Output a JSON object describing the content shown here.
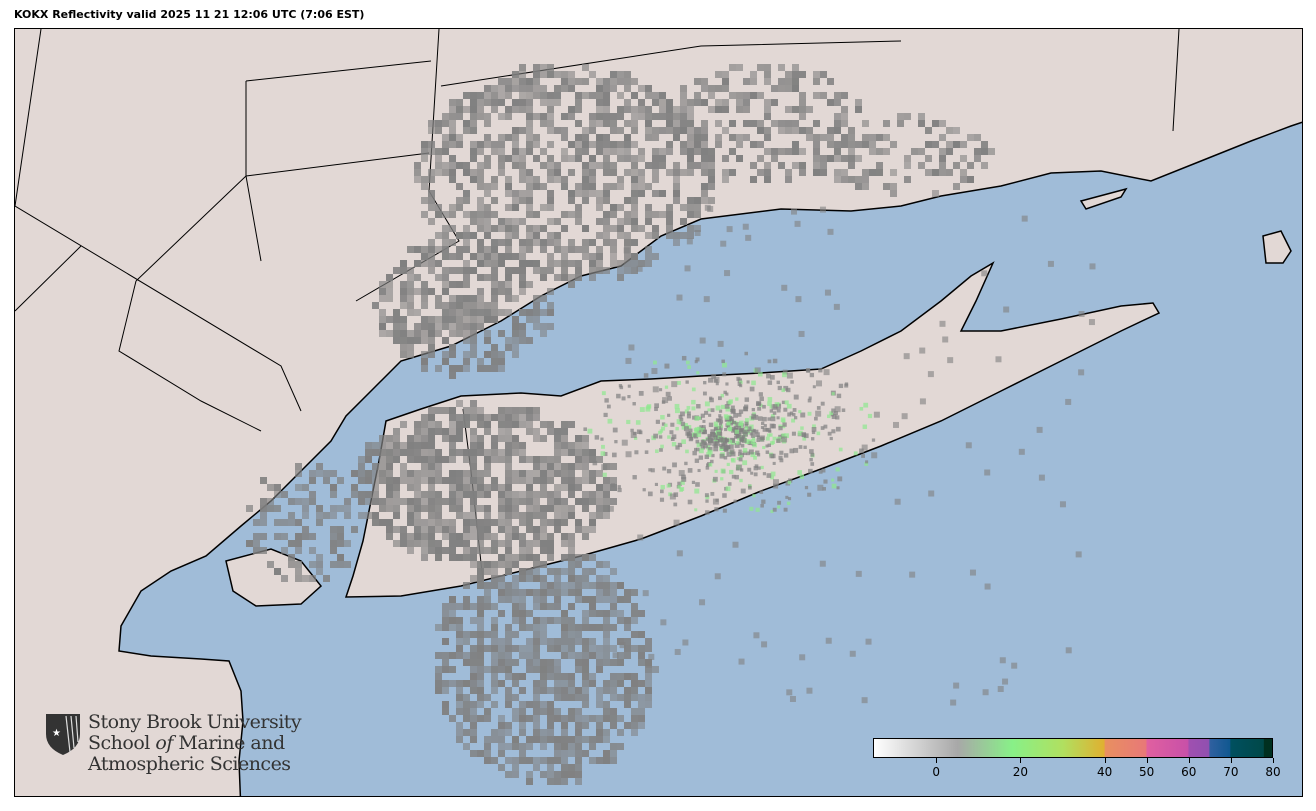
{
  "title": "KOKX Reflectivity valid 2025 11 21 12:06 UTC (7:06 EST)",
  "map": {
    "radar_site": "KOKX",
    "colors": {
      "land": "#e2d8d5",
      "water": "#a0bcd8",
      "echo": "#808080",
      "light_echo": "#8ee88e"
    }
  },
  "logo": {
    "line1": "Stony Brook University",
    "line2_a": "School ",
    "line2_b": "of",
    "line2_c": " Marine and",
    "line3": "Atmospheric Sciences"
  },
  "colorbar": {
    "min": -15,
    "max": 80,
    "ticks": [
      "0",
      "20",
      "40",
      "50",
      "60",
      "70",
      "80"
    ],
    "tick_values": [
      0,
      20,
      40,
      50,
      60,
      70,
      80
    ],
    "stops": [
      {
        "v": -15,
        "c": "#ffffff"
      },
      {
        "v": 5,
        "c": "#a8a8a8"
      },
      {
        "v": 18,
        "c": "#88f088"
      },
      {
        "v": 30,
        "c": "#b0e060"
      },
      {
        "v": 40,
        "c": "#e0b030"
      },
      {
        "v": 40.1,
        "c": "#e89060"
      },
      {
        "v": 50,
        "c": "#e87878"
      },
      {
        "v": 50.1,
        "c": "#e060a0"
      },
      {
        "v": 60,
        "c": "#c850a8"
      },
      {
        "v": 60.1,
        "c": "#a050b0"
      },
      {
        "v": 65,
        "c": "#9050b0"
      },
      {
        "v": 65.1,
        "c": "#3060a0"
      },
      {
        "v": 70,
        "c": "#105890"
      },
      {
        "v": 70.1,
        "c": "#005060"
      },
      {
        "v": 78,
        "c": "#004848"
      },
      {
        "v": 78.1,
        "c": "#003020"
      },
      {
        "v": 80,
        "c": "#003020"
      }
    ]
  }
}
